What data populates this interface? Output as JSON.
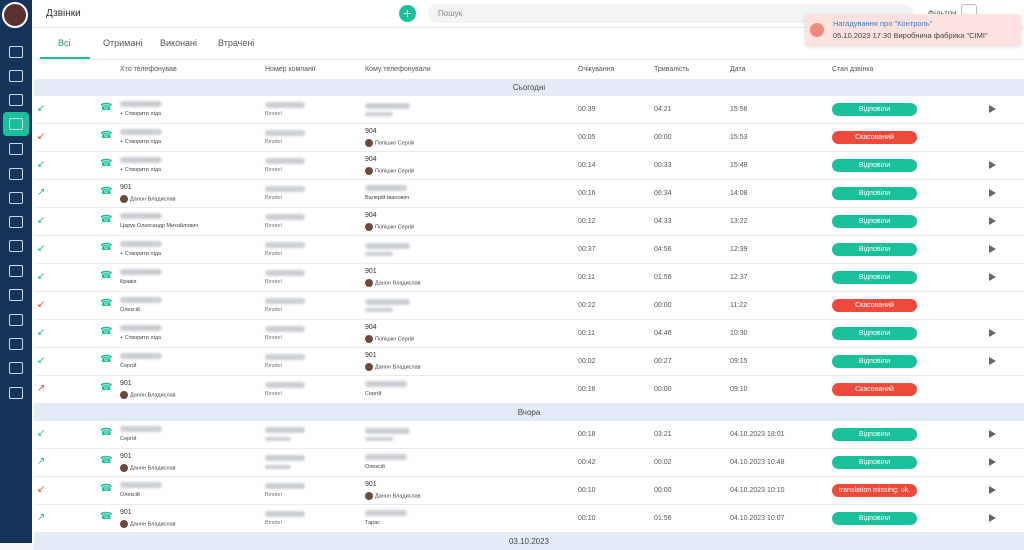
{
  "header": {
    "title": "Дзвінки",
    "search_placeholder": "Пошук",
    "filters": "Фільтри"
  },
  "notification": {
    "title": "Нагадування про \"Контроль\"",
    "text": "05.10.2023 17:30 Виробнича фабрика \"CIMI\""
  },
  "tabs": [
    "Всі",
    "Отримані",
    "Виконані",
    "Втрачені"
  ],
  "table": {
    "columns": [
      "Хто телефонував",
      "Номер компанії",
      "Кому телефонували",
      "Очікування",
      "Тривалість",
      "Дата",
      "Стан дзвінка"
    ],
    "groups": [
      {
        "label": "Сьогодні",
        "rows": [
          {
            "dir": "in",
            "color": "#1cbf9c",
            "caller": {
              "sub": "+ Створити ліда"
            },
            "company": "Binotel",
            "to": {},
            "wait": "00:39",
            "duration": "04:21",
            "date": "15:56",
            "status": "Відповіли",
            "play": true
          },
          {
            "dir": "in",
            "color": "#ec4b3c",
            "caller": {
              "sub": "+ Створити ліда"
            },
            "company": "Binotel",
            "to": {
              "top": "904",
              "sub": "Попішко Сергій",
              "avatar": true
            },
            "wait": "00:05",
            "duration": "00:00",
            "date": "15:53",
            "status": "Скасований",
            "play": false
          },
          {
            "dir": "in",
            "color": "#1cbf9c",
            "caller": {
              "sub": "+ Створити ліда"
            },
            "company": "Binotel",
            "to": {
              "top": "904",
              "sub": "Попішко Сергій",
              "avatar": true
            },
            "wait": "00:14",
            "duration": "00:33",
            "date": "15:48",
            "status": "Відповіли",
            "play": true
          },
          {
            "dir": "out",
            "color": "#1cbf9c",
            "caller": {
              "top": "901",
              "sub": "Данон Владислав",
              "avatar": true
            },
            "company": "Binotel",
            "to": {
              "sub": "Валерій Іванович"
            },
            "wait": "00:16",
            "duration": "06:34",
            "date": "14:08",
            "status": "Відповіли",
            "play": true
          },
          {
            "dir": "in",
            "color": "#1cbf9c",
            "caller": {
              "sub": "Царук Олександр Михайлович"
            },
            "company": "Binotel",
            "to": {
              "top": "904",
              "sub": "Попішко Сергій",
              "avatar": true
            },
            "wait": "00:12",
            "duration": "04:33",
            "date": "13:22",
            "status": "Відповіли",
            "play": true
          },
          {
            "dir": "in",
            "color": "#1cbf9c",
            "caller": {
              "sub": "+ Створити ліда"
            },
            "company": "Binotel",
            "to": {},
            "wait": "00:37",
            "duration": "04:56",
            "date": "12:39",
            "status": "Відповіли",
            "play": true
          },
          {
            "dir": "in",
            "color": "#1cbf9c",
            "caller": {
              "sub": "Кравія"
            },
            "company": "Binotel",
            "to": {
              "top": "901",
              "sub": "Данон Владислав",
              "avatar": true
            },
            "wait": "00:11",
            "duration": "01:56",
            "date": "12:37",
            "status": "Відповіли",
            "play": true
          },
          {
            "dir": "in",
            "color": "#ec4b3c",
            "caller": {
              "sub": "Олексій"
            },
            "company": "Binotel",
            "to": {},
            "wait": "00:22",
            "duration": "00:00",
            "date": "11:22",
            "status": "Скасований",
            "play": false
          },
          {
            "dir": "in",
            "color": "#1cbf9c",
            "caller": {
              "sub": "+ Створити ліда"
            },
            "company": "Binotel",
            "to": {
              "top": "904",
              "sub": "Попішко Сергій",
              "avatar": true
            },
            "wait": "00:11",
            "duration": "04:46",
            "date": "10:30",
            "status": "Відповіли",
            "play": true
          },
          {
            "dir": "in",
            "color": "#1cbf9c",
            "caller": {
              "sub": "Сергій"
            },
            "company": "Binotel",
            "to": {
              "top": "901",
              "sub": "Данон Владислав",
              "avatar": true
            },
            "wait": "00:02",
            "duration": "00:27",
            "date": "09:15",
            "status": "Відповіли",
            "play": true
          },
          {
            "dir": "out",
            "color": "#ec4b3c",
            "caller": {
              "top": "901",
              "sub": "Данон Владислав",
              "avatar": true
            },
            "company": "Binotel",
            "to": {
              "sub": "Сергій"
            },
            "wait": "00:16",
            "duration": "00:00",
            "date": "09:10",
            "status": "Скасований",
            "play": false
          }
        ]
      },
      {
        "label": "Вчора",
        "rows": [
          {
            "dir": "in",
            "color": "#1cbf9c",
            "caller": {
              "sub": "Сергій"
            },
            "to": {},
            "wait": "00:18",
            "duration": "03:21",
            "date": "04.10.2023 18:01",
            "status": "Відповіли",
            "play": true
          },
          {
            "dir": "out",
            "color": "#1cbf9c",
            "caller": {
              "top": "901",
              "sub": "Данон Владислав",
              "avatar": true
            },
            "to": {
              "sub": "Олексій"
            },
            "wait": "00:42",
            "duration": "00:02",
            "date": "04.10.2023 10:48",
            "status": "Відповіли",
            "play": true
          },
          {
            "dir": "in",
            "color": "#ec4b3c",
            "caller": {
              "sub": "Олексій"
            },
            "company": "Binotel",
            "to": {
              "top": "901",
              "sub": "Данон Владислав",
              "avatar": true
            },
            "wait": "00:10",
            "duration": "00:00",
            "date": "04.10.2023 10:10",
            "status": "translation missing: uk.",
            "play": true
          },
          {
            "dir": "out",
            "color": "#1cbf9c",
            "caller": {
              "top": "901",
              "sub": "Данон Владислав",
              "avatar": true
            },
            "company": "Binotel",
            "to": {
              "sub": "Тарас"
            },
            "wait": "00:10",
            "duration": "01:56",
            "date": "04.10.2023 10:07",
            "status": "Відповіли",
            "play": true
          }
        ]
      },
      {
        "label": "03.10.2023",
        "rows": []
      }
    ]
  }
}
